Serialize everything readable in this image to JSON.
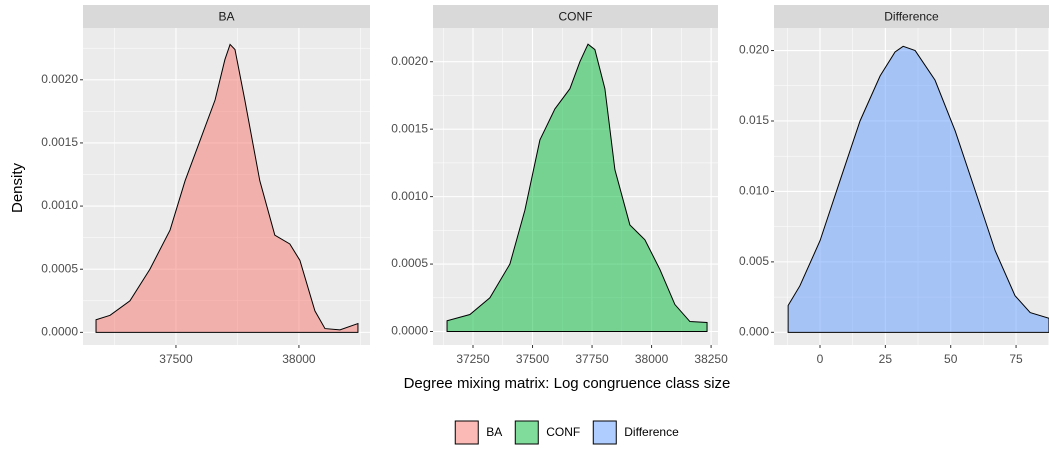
{
  "x_label": "Degree mixing matrix: Log congruence class size",
  "y_label": "Density",
  "chart_data": [
    {
      "type": "density",
      "title": "BA",
      "x": [
        37175,
        37232,
        37313,
        37394,
        37476,
        37537,
        37598,
        37659,
        37699,
        37720,
        37740,
        37780,
        37841,
        37902,
        37963,
        38004,
        38065,
        38106,
        38167,
        38240
      ],
      "series": [
        {
          "name": "BA",
          "color": "#F8766D",
          "values": [
            0.0001,
            0.000135,
            0.00025,
            0.0005,
            0.00081,
            0.0012,
            0.00152,
            0.00184,
            0.00216,
            0.00228,
            0.00224,
            0.00184,
            0.0012,
            0.00077,
            0.0007,
            0.00057,
            0.00017,
            3e-05,
            2e-05,
            7e-05
          ]
        }
      ],
      "xlim": [
        37122,
        38289
      ],
      "ylim": [
        -0.0001,
        0.00241
      ],
      "xticks": [
        37500,
        38000
      ],
      "yticks": [
        {
          "value": 0,
          "label": "0.0000"
        },
        {
          "value": 0.0005,
          "label": "0.0005"
        },
        {
          "value": 0.001,
          "label": "0.0010"
        },
        {
          "value": 0.0015,
          "label": "0.0015"
        },
        {
          "value": 0.002,
          "label": "0.0020"
        }
      ],
      "grid": true
    },
    {
      "type": "density",
      "title": "CONF",
      "x": [
        37141,
        37237,
        37321,
        37405,
        37468,
        37531,
        37594,
        37657,
        37699,
        37733,
        37762,
        37804,
        37846,
        37909,
        37972,
        38035,
        38098,
        38161,
        38233
      ],
      "series": [
        {
          "name": "CONF",
          "color": "#00BA38",
          "values": [
            8e-05,
            0.000126,
            0.00025,
            0.0005,
            0.0009,
            0.00142,
            0.00165,
            0.0018,
            0.002,
            0.00213,
            0.00209,
            0.0018,
            0.0012,
            0.00079,
            0.00068,
            0.00046,
            0.0002,
            7.4e-05,
            6.7e-05
          ]
        }
      ],
      "xlim": [
        37082,
        38279
      ],
      "ylim": [
        -0.0001,
        0.00225
      ],
      "xticks": [
        37250,
        37500,
        37750,
        38000,
        38250
      ],
      "yticks": [
        {
          "value": 0,
          "label": "0.0000"
        },
        {
          "value": 0.0005,
          "label": "0.0005"
        },
        {
          "value": 0.001,
          "label": "0.0010"
        },
        {
          "value": 0.0015,
          "label": "0.0015"
        },
        {
          "value": 0.002,
          "label": "0.0020"
        }
      ],
      "grid": true
    },
    {
      "type": "density",
      "title": "Difference",
      "x": [
        -12.2,
        -7.7,
        0,
        7.7,
        15.3,
        23,
        28.7,
        31.8,
        36.4,
        44,
        51.7,
        59.3,
        67,
        74.6,
        80.4,
        87.6
      ],
      "series": [
        {
          "name": "Difference",
          "color": "#619CFF",
          "values": [
            0.0019,
            0.0033,
            0.0065,
            0.0108,
            0.015,
            0.0182,
            0.0199,
            0.0203,
            0.02,
            0.0179,
            0.0143,
            0.0101,
            0.0058,
            0.0026,
            0.0014,
            0.001
          ]
        }
      ],
      "xlim": [
        -17.6,
        87.6
      ],
      "ylim": [
        -0.0009,
        0.0216
      ],
      "xticks": [
        0,
        25,
        50,
        75
      ],
      "yticks": [
        {
          "value": 0,
          "label": "0.000"
        },
        {
          "value": 0.005,
          "label": "0.005"
        },
        {
          "value": 0.01,
          "label": "0.010"
        },
        {
          "value": 0.015,
          "label": "0.015"
        },
        {
          "value": 0.02,
          "label": "0.020"
        }
      ],
      "grid": true
    }
  ]
}
